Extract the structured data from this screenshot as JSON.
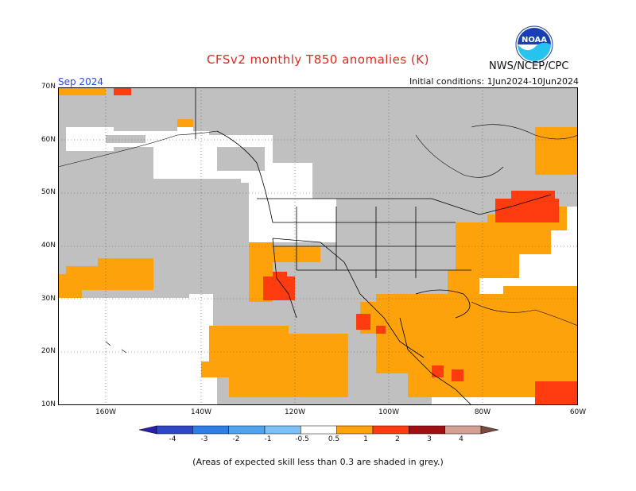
{
  "header": {
    "title": "CFSv2 monthly T850 anomalies (K)",
    "org": "NWS/NCEP/CPC",
    "logo_text": "NOAA",
    "month": "Sep 2024",
    "initial_conditions": "Initial conditions: 1Jun2024-10Jun2024"
  },
  "map": {
    "lat_labels": [
      "70N",
      "60N",
      "50N",
      "40N",
      "30N",
      "20N",
      "10N"
    ],
    "lon_labels": [
      "160W",
      "140W",
      "120W",
      "100W",
      "80W",
      "60W"
    ],
    "colors": {
      "grey_low_skill": "#c0c0c0",
      "land_border": "#000000",
      "ocean_white": "#ffffff"
    }
  },
  "legend": {
    "labels": [
      "-4",
      "-3",
      "-2",
      "-1",
      "-0.5",
      "0.5",
      "1",
      "2",
      "3",
      "4"
    ],
    "colors": [
      "#2a1fa7",
      "#2f46c9",
      "#2e7ee8",
      "#4ea4ef",
      "#7ac0f5",
      "#ffffff",
      "#fea20b",
      "#ff3b10",
      "#a00f12",
      "#d3a092",
      "#7a4a40"
    ]
  },
  "footnote": "(Areas of expected skill less than 0.3 are shaded in grey.)"
}
